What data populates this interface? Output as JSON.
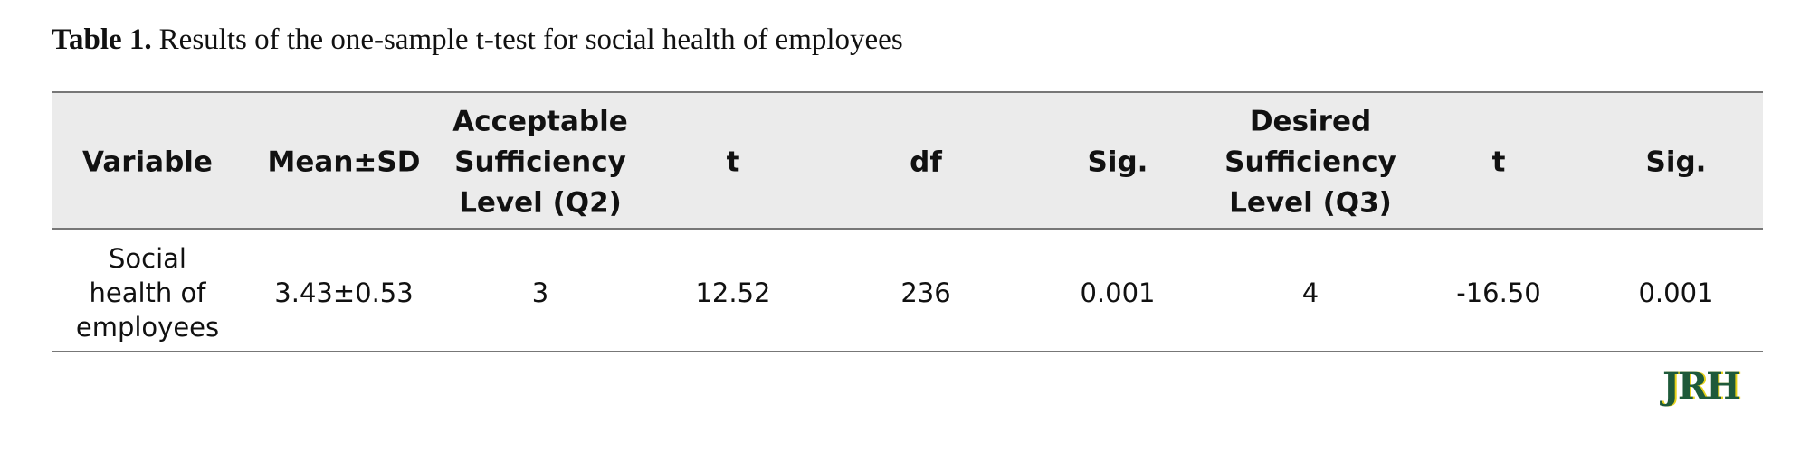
{
  "title": {
    "label": "Table 1.",
    "text": "Results of the one-sample t-test for social health of employees"
  },
  "table": {
    "header": [
      [
        "Variable"
      ],
      [
        "Mean±SD"
      ],
      [
        "Acceptable",
        "Sufficiency",
        "Level (Q2)"
      ],
      [
        "t"
      ],
      [
        "df"
      ],
      [
        "Sig."
      ],
      [
        "Desired",
        "Sufficiency",
        "Level (Q3)"
      ],
      [
        "t"
      ],
      [
        "Sig."
      ]
    ],
    "rows": [
      [
        [
          "Social",
          "health of",
          "employees"
        ],
        [
          "3.43±0.53"
        ],
        [
          "3"
        ],
        [
          "12.52"
        ],
        [
          "236"
        ],
        [
          "0.001"
        ],
        [
          "4"
        ],
        [
          "-16.50"
        ],
        [
          "0.001"
        ]
      ]
    ]
  },
  "logo": "JRH"
}
